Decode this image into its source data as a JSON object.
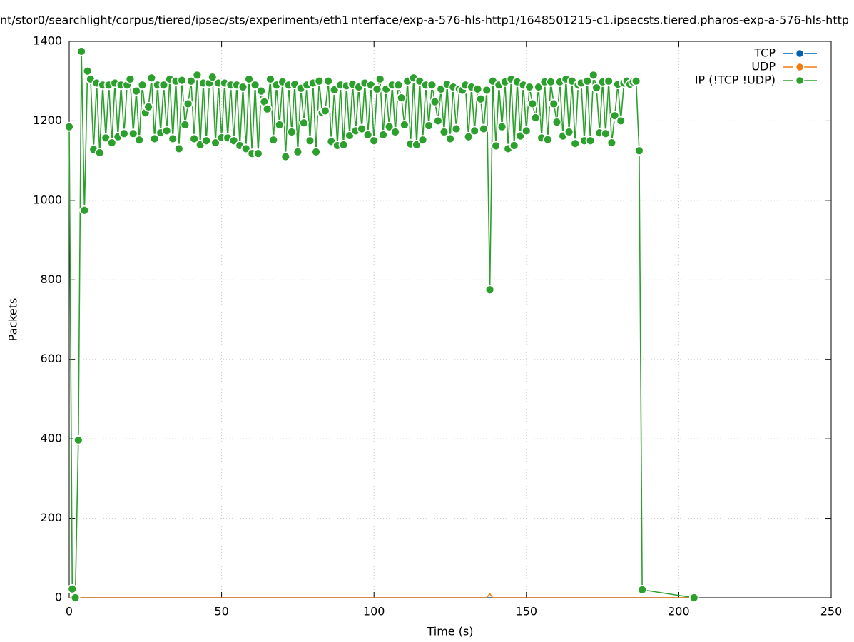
{
  "chart_data": {
    "type": "line",
    "title": "nt/stor0/searchlight/corpus/tiered/ipsec/sts/experiment₃/eth1ᵢnterface/exp-a-576-hls-http1/1648501215-c1.ipsecsts.tiered.pharos-exp-a-576-hls-http",
    "x_label": "Time (s)",
    "y_label": "Packets",
    "xlim": [
      0,
      250
    ],
    "xticks": [
      0,
      50,
      100,
      150,
      200,
      250
    ],
    "ylim": [
      0,
      1400
    ],
    "yticks": [
      0,
      200,
      400,
      600,
      800,
      1000,
      1200,
      1400
    ],
    "grid": true,
    "legend": "right top",
    "x": [
      0,
      1,
      2,
      3,
      4,
      5,
      6,
      7,
      8,
      9,
      10,
      11,
      12,
      13,
      14,
      15,
      16,
      17,
      18,
      19,
      20,
      21,
      22,
      23,
      24,
      25,
      26,
      27,
      28,
      29,
      30,
      31,
      32,
      33,
      34,
      35,
      36,
      37,
      38,
      39,
      40,
      41,
      42,
      43,
      44,
      45,
      46,
      47,
      48,
      49,
      50,
      51,
      52,
      53,
      54,
      55,
      56,
      57,
      58,
      59,
      60,
      61,
      62,
      63,
      64,
      65,
      66,
      67,
      68,
      69,
      70,
      71,
      72,
      73,
      74,
      75,
      76,
      77,
      78,
      79,
      80,
      81,
      82,
      83,
      84,
      85,
      86,
      87,
      88,
      89,
      90,
      91,
      92,
      93,
      94,
      95,
      96,
      97,
      98,
      99,
      100,
      101,
      102,
      103,
      104,
      105,
      106,
      107,
      108,
      109,
      110,
      111,
      112,
      113,
      114,
      115,
      116,
      117,
      118,
      119,
      120,
      121,
      122,
      123,
      124,
      125,
      126,
      127,
      128,
      129,
      130,
      131,
      132,
      133,
      134,
      135,
      136,
      137,
      138,
      139,
      140,
      141,
      142,
      143,
      144,
      145,
      146,
      147,
      148,
      149,
      150,
      151,
      152,
      153,
      154,
      155,
      156,
      157,
      158,
      159,
      160,
      161,
      162,
      163,
      164,
      165,
      166,
      167,
      168,
      169,
      170,
      171,
      172,
      173,
      174,
      175,
      176,
      177,
      178,
      179,
      180,
      181,
      182,
      183,
      184,
      185,
      186,
      187,
      188,
      205
    ],
    "series": [
      {
        "name": "TCP",
        "color": "#0060ad",
        "marker": false,
        "values": [
          0,
          0,
          0,
          0,
          0,
          0,
          0,
          0,
          0,
          0,
          0,
          0,
          0,
          0,
          0,
          0,
          0,
          0,
          0,
          0,
          0,
          0,
          0,
          0,
          0,
          0,
          0,
          0,
          0,
          0,
          0,
          0,
          0,
          0,
          0,
          0,
          0,
          0,
          0,
          0,
          0,
          0,
          0,
          0,
          0,
          0,
          0,
          0,
          0,
          0,
          0,
          0,
          0,
          0,
          0,
          0,
          0,
          0,
          0,
          0,
          0,
          0,
          0,
          0,
          0,
          0,
          0,
          0,
          0,
          0,
          0,
          0,
          0,
          0,
          0,
          0,
          0,
          0,
          0,
          0,
          0,
          0,
          0,
          0,
          0,
          0,
          0,
          0,
          0,
          0,
          0,
          0,
          0,
          0,
          0,
          0,
          0,
          0,
          0,
          0,
          0,
          0,
          0,
          0,
          0,
          0,
          0,
          0,
          0,
          0,
          0,
          0,
          0,
          0,
          0,
          0,
          0,
          0,
          0,
          0,
          0,
          0,
          0,
          0,
          0,
          0,
          0,
          0,
          0,
          0,
          0,
          0,
          0,
          0,
          0,
          0,
          0,
          0,
          0,
          0,
          0,
          0,
          0,
          0,
          0,
          0,
          0,
          0,
          0,
          0,
          0,
          0,
          0,
          0,
          0,
          0,
          0,
          0,
          0,
          0,
          0,
          0,
          0,
          0,
          0,
          0,
          0,
          0,
          0,
          0,
          0,
          0,
          0,
          0,
          0,
          0,
          0,
          0,
          0,
          0,
          0,
          0,
          0,
          0,
          0,
          0,
          0,
          0,
          0,
          0
        ]
      },
      {
        "name": "UDP",
        "color": "#f07c10",
        "marker": false,
        "values": [
          0,
          0,
          0,
          0,
          0,
          0,
          0,
          0,
          0,
          0,
          0,
          0,
          0,
          0,
          0,
          0,
          0,
          0,
          0,
          0,
          0,
          0,
          0,
          0,
          0,
          0,
          0,
          0,
          0,
          0,
          0,
          0,
          0,
          0,
          0,
          0,
          0,
          0,
          0,
          0,
          0,
          0,
          0,
          0,
          0,
          0,
          0,
          0,
          0,
          0,
          0,
          0,
          0,
          0,
          0,
          0,
          0,
          0,
          0,
          0,
          0,
          0,
          0,
          0,
          0,
          0,
          0,
          0,
          0,
          0,
          0,
          0,
          0,
          0,
          0,
          0,
          0,
          0,
          0,
          0,
          0,
          0,
          0,
          0,
          0,
          0,
          0,
          0,
          0,
          0,
          0,
          0,
          0,
          0,
          0,
          0,
          0,
          0,
          0,
          0,
          0,
          0,
          0,
          0,
          0,
          0,
          0,
          0,
          0,
          0,
          0,
          0,
          0,
          0,
          0,
          0,
          0,
          0,
          0,
          0,
          0,
          0,
          0,
          0,
          0,
          0,
          0,
          0,
          0,
          0,
          0,
          0,
          0,
          0,
          0,
          0,
          0,
          0,
          10,
          0,
          0,
          0,
          0,
          0,
          0,
          0,
          0,
          0,
          0,
          0,
          0,
          0,
          0,
          0,
          0,
          0,
          0,
          0,
          0,
          0,
          0,
          0,
          0,
          0,
          0,
          0,
          0,
          0,
          0,
          0,
          0,
          0,
          0,
          0,
          0,
          0,
          0,
          0,
          0,
          0,
          0,
          0,
          0,
          0,
          0,
          0,
          0,
          0,
          0,
          0
        ]
      },
      {
        "name": "IP (!TCP  !UDP)",
        "color": "#2ca02c",
        "marker": true,
        "values": [
          1185,
          22,
          0,
          397,
          1375,
          975,
          1325,
          1305,
          1128,
          1295,
          1120,
          1290,
          1157,
          1290,
          1145,
          1295,
          1160,
          1290,
          1168,
          1290,
          1305,
          1168,
          1275,
          1152,
          1290,
          1220,
          1235,
          1308,
          1155,
          1290,
          1170,
          1290,
          1175,
          1305,
          1155,
          1300,
          1130,
          1302,
          1190,
          1243,
          1300,
          1155,
          1315,
          1140,
          1295,
          1150,
          1295,
          1310,
          1145,
          1295,
          1158,
          1295,
          1157,
          1290,
          1150,
          1290,
          1138,
          1285,
          1130,
          1305,
          1118,
          1290,
          1118,
          1275,
          1248,
          1230,
          1305,
          1152,
          1290,
          1190,
          1298,
          1110,
          1290,
          1172,
          1292,
          1122,
          1282,
          1195,
          1290,
          1150,
          1295,
          1122,
          1300,
          1220,
          1225,
          1300,
          1148,
          1278,
          1138,
          1290,
          1140,
          1288,
          1163,
          1292,
          1175,
          1285,
          1180,
          1295,
          1165,
          1290,
          1150,
          1280,
          1305,
          1165,
          1280,
          1185,
          1290,
          1172,
          1290,
          1258,
          1190,
          1300,
          1142,
          1308,
          1140,
          1300,
          1152,
          1290,
          1188,
          1290,
          1248,
          1200,
          1280,
          1172,
          1292,
          1155,
          1285,
          1180,
          1280,
          1277,
          1290,
          1160,
          1285,
          1175,
          1280,
          1255,
          1180,
          1277,
          775,
          1300,
          1137,
          1290,
          1185,
          1298,
          1130,
          1305,
          1138,
          1298,
          1162,
          1290,
          1175,
          1285,
          1243,
          1208,
          1285,
          1157,
          1298,
          1153,
          1298,
          1243,
          1197,
          1298,
          1162,
          1305,
          1172,
          1300,
          1143,
          1290,
          1295,
          1150,
          1300,
          1150,
          1315,
          1283,
          1170,
          1298,
          1168,
          1300,
          1145,
          1213,
          1292,
          1200,
          1295,
          1300,
          1292,
          1298,
          1300,
          1125,
          20,
          0
        ]
      }
    ]
  }
}
